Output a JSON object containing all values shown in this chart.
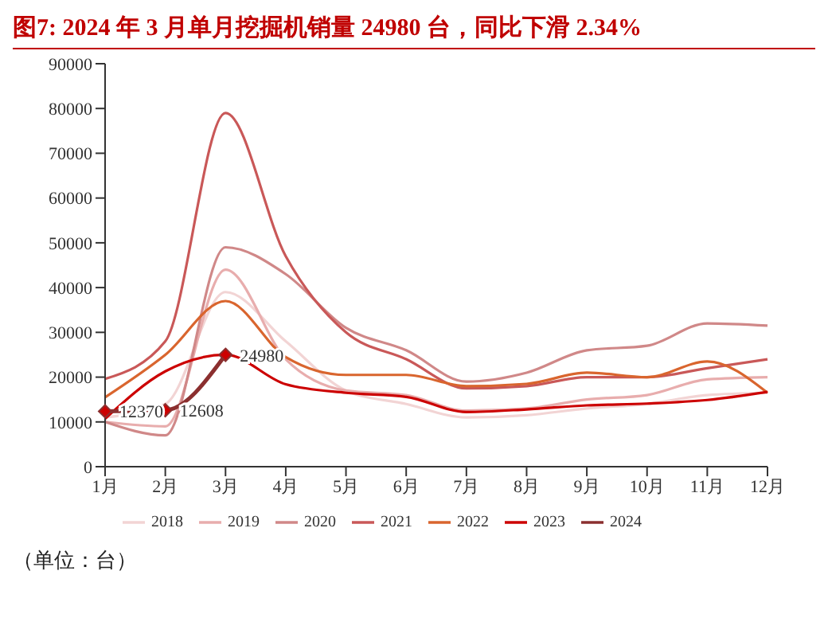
{
  "chart_data": {
    "type": "line",
    "title": "图7:  2024 年 3 月单月挖掘机销量 24980 台，同比下滑 2.34%",
    "annotations": [
      "（单位：台）"
    ],
    "categories": [
      "1月",
      "2月",
      "3月",
      "4月",
      "5月",
      "6月",
      "7月",
      "8月",
      "9月",
      "10月",
      "11月",
      "12月"
    ],
    "series": [
      {
        "name": "2018",
        "color": "#f2d4d4",
        "marker": "none",
        "values": [
          11000,
          14000,
          39000,
          28000,
          17000,
          14000,
          11000,
          11500,
          13000,
          14000,
          16000,
          16500
        ]
      },
      {
        "name": "2019",
        "color": "#e8adad",
        "marker": "none",
        "values": [
          10000,
          9000,
          44000,
          24000,
          17000,
          16000,
          12500,
          13000,
          15000,
          16000,
          19500,
          20000
        ]
      },
      {
        "name": "2020",
        "color": "#d08888",
        "marker": "none",
        "values": [
          10000,
          7000,
          49000,
          43000,
          31000,
          26000,
          19000,
          21000,
          26000,
          27000,
          32000,
          31500
        ]
      },
      {
        "name": "2021",
        "color": "#c95858",
        "marker": "none",
        "values": [
          19600,
          28000,
          79000,
          47000,
          30000,
          24000,
          17500,
          18000,
          20000,
          20000,
          22000,
          24000
        ]
      },
      {
        "name": "2022",
        "color": "#d9652e",
        "marker": "none",
        "values": [
          15500,
          25000,
          37000,
          24500,
          20500,
          20500,
          18000,
          18500,
          21000,
          20000,
          23500,
          16500
        ]
      },
      {
        "name": "2023",
        "color": "#cc0000",
        "marker": "none",
        "values": [
          10700,
          21300,
          25000,
          18400,
          16500,
          15600,
          12200,
          12800,
          13700,
          14100,
          14900,
          16700
        ]
      },
      {
        "name": "2024",
        "color": "#8b2f2f",
        "marker": "diamond",
        "values": [
          12370,
          12608,
          24980,
          null,
          null,
          null,
          null,
          null,
          null,
          null,
          null,
          null
        ],
        "value_labels": [
          "12370",
          "12608",
          "24980",
          null,
          null,
          null,
          null,
          null,
          null,
          null,
          null,
          null
        ]
      }
    ],
    "ylim": [
      0,
      90000
    ],
    "yticks": [
      0,
      10000,
      20000,
      30000,
      40000,
      50000,
      60000,
      70000,
      80000,
      90000
    ],
    "grid": false,
    "legend": "bottom"
  }
}
